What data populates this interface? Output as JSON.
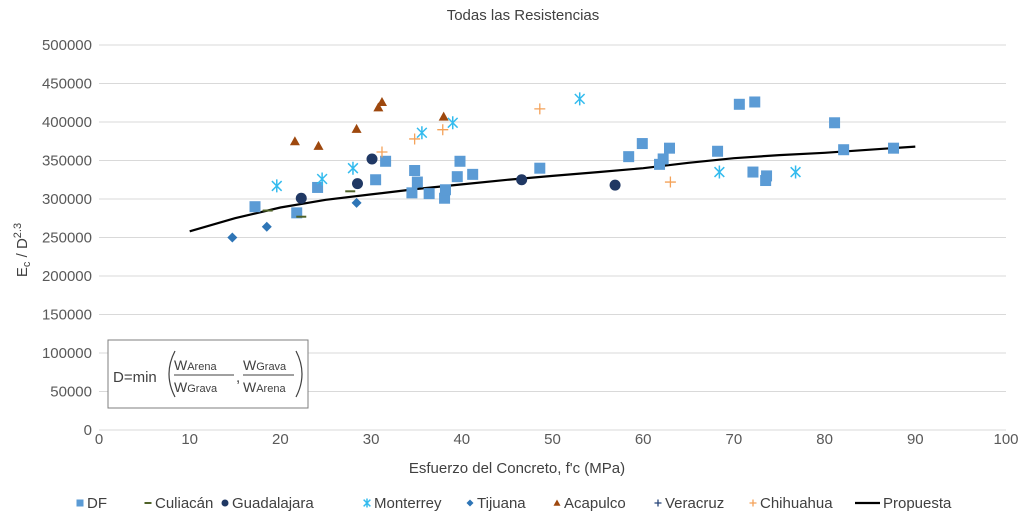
{
  "chart_data": {
    "type": "scatter",
    "title": "Todas las Resistencias",
    "xlabel": "Esfuerzo del Concreto, f'c (MPa)",
    "ylabel_main": "E",
    "ylabel_sub": "c",
    "ylabel_mid": " / D",
    "ylabel_sup": "2.3",
    "xlim": [
      0,
      100
    ],
    "ylim": [
      0,
      500000
    ],
    "x_ticks": [
      0,
      10,
      20,
      30,
      40,
      50,
      60,
      70,
      80,
      90,
      100
    ],
    "y_ticks": [
      0,
      50000,
      100000,
      150000,
      200000,
      250000,
      300000,
      350000,
      400000,
      450000,
      500000
    ],
    "grid": "horizontal",
    "legend_position": "bottom",
    "series": [
      {
        "name": "DF",
        "marker": "square",
        "color": "#5b9bd5",
        "points": [
          [
            17.2,
            290000
          ],
          [
            21.8,
            282000
          ],
          [
            24.1,
            315000
          ],
          [
            30.5,
            325000
          ],
          [
            31.6,
            349000
          ],
          [
            34.5,
            308000
          ],
          [
            34.8,
            337000
          ],
          [
            35.1,
            322000
          ],
          [
            36.4,
            307000
          ],
          [
            38.1,
            301000
          ],
          [
            38.2,
            312000
          ],
          [
            39.5,
            329000
          ],
          [
            39.8,
            349000
          ],
          [
            41.2,
            332000
          ],
          [
            48.6,
            340000
          ],
          [
            58.4,
            355000
          ],
          [
            59.9,
            372000
          ],
          [
            61.8,
            345000
          ],
          [
            62.2,
            352000
          ],
          [
            62.9,
            366000
          ],
          [
            68.2,
            362000
          ],
          [
            70.6,
            423000
          ],
          [
            72.1,
            335000
          ],
          [
            72.3,
            426000
          ],
          [
            73.5,
            324000
          ],
          [
            73.6,
            330000
          ],
          [
            81.1,
            399000
          ],
          [
            82.1,
            364000
          ],
          [
            87.6,
            366000
          ]
        ]
      },
      {
        "name": "Culiacán",
        "marker": "dash",
        "color": "#4f6228",
        "points": [
          [
            22.3,
            277000
          ],
          [
            27.7,
            310000
          ],
          [
            18.6,
            285000
          ]
        ]
      },
      {
        "name": "Guadalajara",
        "marker": "circle",
        "color": "#203864",
        "points": [
          [
            22.3,
            301000
          ],
          [
            28.5,
            320000
          ],
          [
            30.1,
            352000
          ],
          [
            46.6,
            325000
          ],
          [
            56.9,
            318000
          ]
        ]
      },
      {
        "name": "Monterrey",
        "marker": "star",
        "color": "#33bbee",
        "points": [
          [
            19.6,
            317000
          ],
          [
            24.6,
            326000
          ],
          [
            28.0,
            340000
          ],
          [
            35.6,
            386000
          ],
          [
            39.0,
            399000
          ],
          [
            53.0,
            430000
          ],
          [
            68.4,
            335000
          ],
          [
            76.8,
            335000
          ]
        ]
      },
      {
        "name": "Tijuana",
        "marker": "diamond",
        "color": "#2e75b6",
        "points": [
          [
            14.7,
            250000
          ],
          [
            18.5,
            264000
          ],
          [
            28.4,
            295000
          ]
        ]
      },
      {
        "name": "Acapulco",
        "marker": "triangle",
        "color": "#9e480e",
        "points": [
          [
            21.6,
            375000
          ],
          [
            24.2,
            369000
          ],
          [
            28.4,
            391000
          ],
          [
            30.8,
            419000
          ],
          [
            31.2,
            426000
          ],
          [
            38.0,
            407000
          ]
        ]
      },
      {
        "name": "Veracruz",
        "marker": "plus",
        "color": "#264478",
        "points": []
      },
      {
        "name": "Chihuahua",
        "marker": "plus",
        "color": "#f4a259",
        "points": [
          [
            31.2,
            361000
          ],
          [
            34.8,
            378000
          ],
          [
            37.9,
            390000
          ],
          [
            48.6,
            417000
          ],
          [
            63.0,
            322000
          ]
        ]
      }
    ],
    "fit_line": {
      "name": "Propuesta",
      "color": "#000000",
      "points": [
        [
          10,
          258000
        ],
        [
          15,
          275000
        ],
        [
          20,
          289000
        ],
        [
          25,
          299000
        ],
        [
          30,
          306000
        ],
        [
          35,
          313000
        ],
        [
          40,
          319000
        ],
        [
          45,
          325000
        ],
        [
          50,
          330000
        ],
        [
          55,
          335000
        ],
        [
          60,
          340000
        ],
        [
          65,
          347000
        ],
        [
          70,
          353000
        ],
        [
          75,
          357000
        ],
        [
          80,
          360000
        ],
        [
          85,
          364000
        ],
        [
          90,
          368000
        ]
      ]
    },
    "formula": {
      "prefix": "D=min",
      "num1": "W",
      "num1_sub": "Arena",
      "den1": "W",
      "den1_sub": "Grava",
      "sep": ",",
      "num2": "W",
      "num2_sub": "Grava",
      "den2": "W",
      "den2_sub": "Arena"
    }
  }
}
